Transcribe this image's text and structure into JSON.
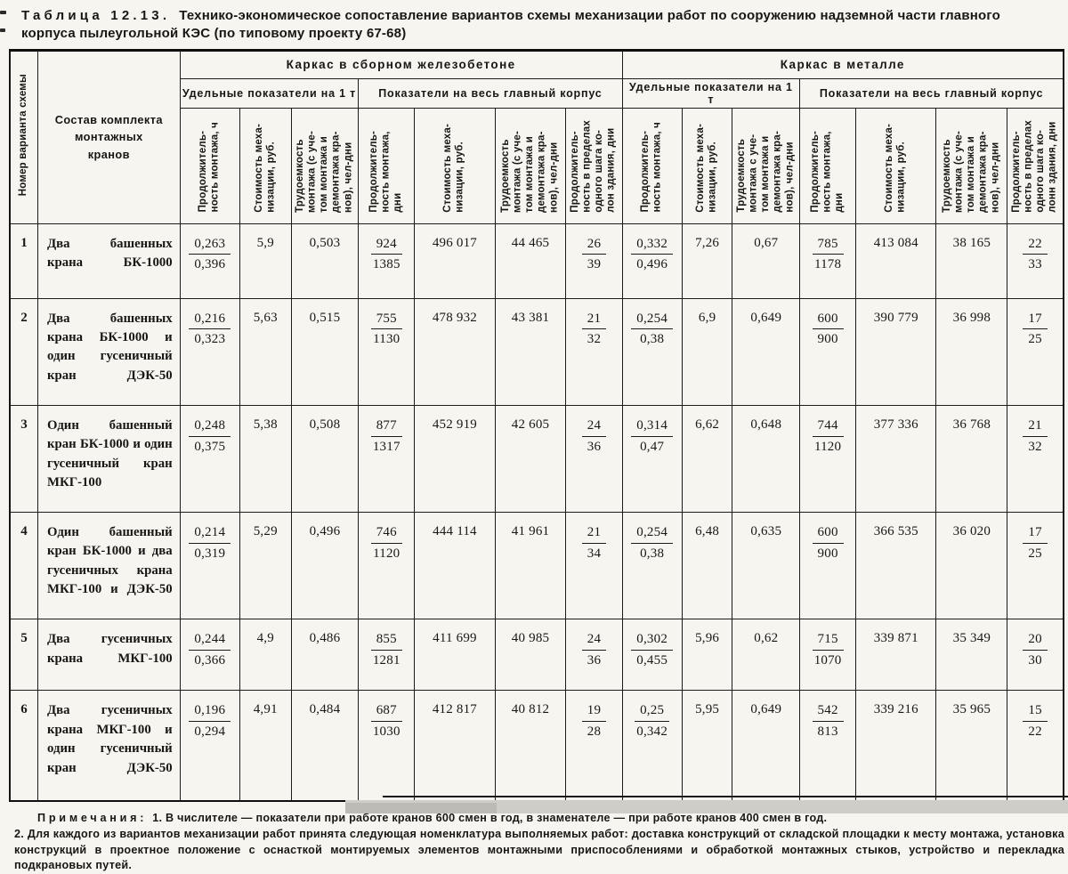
{
  "page": {
    "title_label": "Таблица 12.13.",
    "title_text": "Технико-экономическое сопоставление вариантов схемы механизации работ по сооружению надземной части главного корпуса пылеугольной КЭС (по типовому проекту 67-68)"
  },
  "table": {
    "corner": {
      "variant_header": "Номер варианта схемы",
      "composition_header": "Состав комплекта монтажных кранов"
    },
    "groups": [
      "Каркас в сборном железобетоне",
      "Каркас в металле"
    ],
    "subgroups": [
      "Удельные показатели на 1 т",
      "Показатели на весь главный корпус",
      "Удельные показатели на 1 т",
      "Показатели на весь главный корпус"
    ],
    "columns": [
      {
        "lines": [
          "Продолжитель-",
          "ность монтажа, ч"
        ]
      },
      {
        "lines": [
          "Стоимость меха-",
          "низации, руб."
        ]
      },
      {
        "lines": [
          "Трудоемкость",
          "монтажа (с уче-",
          "том монтажа и",
          "демонтажа кра-",
          "нов), чел-дни"
        ]
      },
      {
        "lines": [
          "Продолжитель-",
          "ность монтажа,",
          "дни"
        ]
      },
      {
        "lines": [
          "Стоимость меха-",
          "низации, руб."
        ]
      },
      {
        "lines": [
          "Трудоемкость",
          "монтажа (с уче-",
          "том монтажа и",
          "демонтажа кра-",
          "нов), чел-дни"
        ]
      },
      {
        "lines": [
          "Продолжитель-",
          "ность в пределах",
          "одного шага ко-",
          "лон здания, дни"
        ]
      },
      {
        "lines": [
          "Продолжитель-",
          "ность монтажа, ч"
        ]
      },
      {
        "lines": [
          "Стоимость меха-",
          "низации, руб."
        ]
      },
      {
        "lines": [
          "Трудоемкость",
          "монтажа с уче-",
          "том монтажа и",
          "демонтажа кра-",
          "нов), чел-дни"
        ]
      },
      {
        "lines": [
          "Продолжитель-",
          "ность монтажа,",
          "дни"
        ]
      },
      {
        "lines": [
          "Стоимость меха-",
          "низации, руб."
        ]
      },
      {
        "lines": [
          "Трудоемкость",
          "монтажа (с уче-",
          "том монтажа и",
          "демонтажа кра-",
          "нов), чел-дни"
        ]
      },
      {
        "lines": [
          "Продолжитель-",
          "ность в пределах",
          "одного шага ко-",
          "лонн здания, дни"
        ]
      }
    ],
    "rows": [
      {
        "num": "1",
        "composition": "Два башенных крана БК-1000",
        "cells": [
          {
            "f": [
              "0,263",
              "0,396"
            ]
          },
          {
            "v": "5,9"
          },
          {
            "v": "0,503"
          },
          {
            "f": [
              "924",
              "1385"
            ]
          },
          {
            "v": "496 017"
          },
          {
            "v": "44 465"
          },
          {
            "f": [
              "26",
              "39"
            ]
          },
          {
            "f": [
              "0,332",
              "0,496"
            ]
          },
          {
            "v": "7,26"
          },
          {
            "v": "0,67"
          },
          {
            "f": [
              "785",
              "1178"
            ]
          },
          {
            "v": "413 084"
          },
          {
            "v": "38 165"
          },
          {
            "f": [
              "22",
              "33"
            ]
          }
        ]
      },
      {
        "num": "2",
        "composition": "Два башенных крана БК-1000 и один гусеничный кран ДЭК-50",
        "cells": [
          {
            "f": [
              "0,216",
              "0,323"
            ]
          },
          {
            "v": "5,63"
          },
          {
            "v": "0,515"
          },
          {
            "f": [
              "755",
              "1130"
            ]
          },
          {
            "v": "478 932"
          },
          {
            "v": "43 381"
          },
          {
            "f": [
              "21",
              "32"
            ]
          },
          {
            "f": [
              "0,254",
              "0,38"
            ]
          },
          {
            "v": "6,9"
          },
          {
            "v": "0,649"
          },
          {
            "f": [
              "600",
              "900"
            ]
          },
          {
            "v": "390 779"
          },
          {
            "v": "36 998"
          },
          {
            "f": [
              "17",
              "25"
            ]
          }
        ]
      },
      {
        "num": "3",
        "composition": "Один башенный кран БК-1000 и один гусеничный кран МКГ-100",
        "cells": [
          {
            "f": [
              "0,248",
              "0,375"
            ]
          },
          {
            "v": "5,38"
          },
          {
            "v": "0,508"
          },
          {
            "f": [
              "877",
              "1317"
            ]
          },
          {
            "v": "452 919"
          },
          {
            "v": "42 605"
          },
          {
            "f": [
              "24",
              "36"
            ]
          },
          {
            "f": [
              "0,314",
              "0,47"
            ]
          },
          {
            "v": "6,62"
          },
          {
            "v": "0,648"
          },
          {
            "f": [
              "744",
              "1120"
            ]
          },
          {
            "v": "377 336"
          },
          {
            "v": "36 768"
          },
          {
            "f": [
              "21",
              "32"
            ]
          }
        ]
      },
      {
        "num": "4",
        "composition": "Один башенный кран БК-1000 и два гусеничных крана МКГ-100 и ДЭК-50",
        "cells": [
          {
            "f": [
              "0,214",
              "0,319"
            ]
          },
          {
            "v": "5,29"
          },
          {
            "v": "0,496"
          },
          {
            "f": [
              "746",
              "1120"
            ]
          },
          {
            "v": "444 114"
          },
          {
            "v": "41 961"
          },
          {
            "f": [
              "21",
              "34"
            ]
          },
          {
            "f": [
              "0,254",
              "0,38"
            ]
          },
          {
            "v": "6,48"
          },
          {
            "v": "0,635"
          },
          {
            "f": [
              "600",
              "900"
            ]
          },
          {
            "v": "366 535"
          },
          {
            "v": "36 020"
          },
          {
            "f": [
              "17",
              "25"
            ]
          }
        ]
      },
      {
        "num": "5",
        "composition": "Два гусеничных крана МКГ-100",
        "cells": [
          {
            "f": [
              "0,244",
              "0,366"
            ]
          },
          {
            "v": "4,9"
          },
          {
            "v": "0,486"
          },
          {
            "f": [
              "855",
              "1281"
            ]
          },
          {
            "v": "411 699"
          },
          {
            "v": "40 985"
          },
          {
            "f": [
              "24",
              "36"
            ]
          },
          {
            "f": [
              "0,302",
              "0,455"
            ]
          },
          {
            "v": "5,96"
          },
          {
            "v": "0,62"
          },
          {
            "f": [
              "715",
              "1070"
            ]
          },
          {
            "v": "339 871"
          },
          {
            "v": "35 349"
          },
          {
            "f": [
              "20",
              "30"
            ]
          }
        ]
      },
      {
        "num": "6",
        "composition": "Два гусеничных крана МКГ-100 и один гусеничный кран ДЭК-50",
        "cells": [
          {
            "f": [
              "0,196",
              "0,294"
            ]
          },
          {
            "v": "4,91"
          },
          {
            "v": "0,484"
          },
          {
            "f": [
              "687",
              "1030"
            ]
          },
          {
            "v": "412 817"
          },
          {
            "v": "40 812"
          },
          {
            "f": [
              "19",
              "28"
            ]
          },
          {
            "f": [
              "0,25",
              "0,342"
            ]
          },
          {
            "v": "5,95"
          },
          {
            "v": "0,649"
          },
          {
            "f": [
              "542",
              "813"
            ]
          },
          {
            "v": "339 216"
          },
          {
            "v": "35 965"
          },
          {
            "f": [
              "15",
              "22"
            ]
          }
        ]
      }
    ]
  },
  "notes": {
    "label": "Примечания:",
    "note1": "1. В числителе — показатели при работе кранов 600 смен в год, в знаменателе — при работе кранов 400 смен в год.",
    "note2": "2. Для каждого из вариантов механизации работ принята следующая номенклатура выполняемых работ: доставка конструкций от складской площадки к месту монтажа, установка конструкций в проектное положение с оснасткой монтируемых элементов монтажными приспособлениями и обработкой монтажных стыков, устройство и перекладка подкрановых путей."
  }
}
